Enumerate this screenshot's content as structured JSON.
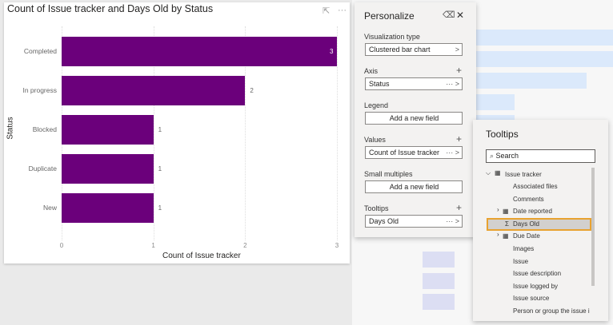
{
  "chart": {
    "title": "Count of Issue tracker and Days Old by Status",
    "focus_icon": "focus-mode-icon",
    "more_icon": "more-options-icon"
  },
  "chart_data": {
    "type": "bar",
    "orientation": "horizontal",
    "title": "Count of Issue tracker and Days Old by Status",
    "xlabel": "Count of Issue tracker",
    "ylabel": "Status",
    "categories": [
      "Completed",
      "In progress",
      "Blocked",
      "Duplicate",
      "New"
    ],
    "values": [
      3,
      2,
      1,
      1,
      1
    ],
    "xlim": [
      0,
      3
    ],
    "xticks": [
      "0",
      "1",
      "2",
      "3"
    ],
    "color": "#6b007b",
    "grid": true
  },
  "personalize": {
    "title": "Personalize",
    "viz_type_label": "Visualization type",
    "viz_type": "Clustered bar chart",
    "axis_label": "Axis",
    "axis_value": "Status",
    "legend_label": "Legend",
    "legend_value": "Add a new field",
    "values_label": "Values",
    "values_value": "Count of Issue tracker",
    "small_label": "Small multiples",
    "small_value": "Add a new field",
    "tooltips_label": "Tooltips",
    "tooltips_value": "Days Old",
    "more": "···",
    "chev": ">",
    "plus": "+",
    "close": "✕",
    "eraser": "⌫"
  },
  "tooltips": {
    "title": "Tooltips",
    "search_placeholder": "Search",
    "table": "Issue tracker",
    "items": [
      "Associated files",
      "Comments",
      "Date reported",
      "Days Old",
      "Due Date",
      "Images",
      "Issue",
      "Issue description",
      "Issue logged by",
      "Issue source",
      "Person or group the issue i"
    ]
  }
}
